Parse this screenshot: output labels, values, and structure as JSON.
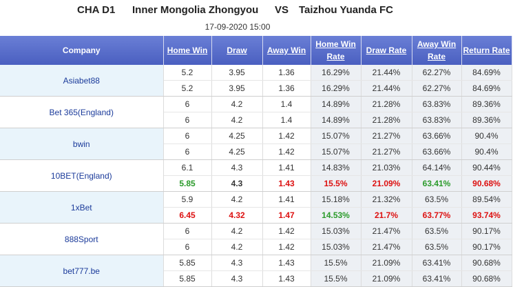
{
  "header": {
    "league": "CHA D1",
    "home": "Inner Mongolia Zhongyou",
    "vs": "VS",
    "away": "Taizhou Yuanda FC",
    "date": "17-09-2020 15:00"
  },
  "table": {
    "columns": [
      "Company",
      "Home Win",
      "Draw",
      "Away Win",
      "Home Win Rate",
      "Draw Rate",
      "Away Win Rate",
      "Return Rate"
    ],
    "companies": [
      {
        "name": "Asiabet88",
        "lines": [
          {
            "cells": [
              "5.2",
              "3.95",
              "1.36",
              "16.29%",
              "21.44%",
              "62.27%",
              "84.69%"
            ]
          },
          {
            "cells": [
              "5.2",
              "3.95",
              "1.36",
              "16.29%",
              "21.44%",
              "62.27%",
              "84.69%"
            ]
          }
        ]
      },
      {
        "name": "Bet 365(England)",
        "lines": [
          {
            "cells": [
              "6",
              "4.2",
              "1.4",
              "14.89%",
              "21.28%",
              "63.83%",
              "89.36%"
            ]
          },
          {
            "cells": [
              "6",
              "4.2",
              "1.4",
              "14.89%",
              "21.28%",
              "63.83%",
              "89.36%"
            ]
          }
        ]
      },
      {
        "name": "bwin",
        "lines": [
          {
            "cells": [
              "6",
              "4.25",
              "1.42",
              "15.07%",
              "21.27%",
              "63.66%",
              "90.4%"
            ]
          },
          {
            "cells": [
              "6",
              "4.25",
              "1.42",
              "15.07%",
              "21.27%",
              "63.66%",
              "90.4%"
            ]
          }
        ]
      },
      {
        "name": "10BET(England)",
        "lines": [
          {
            "cells": [
              "6.1",
              "4.3",
              "1.41",
              "14.83%",
              "21.03%",
              "64.14%",
              "90.44%"
            ]
          },
          {
            "cells": [
              "5.85",
              "4.3",
              "1.43",
              "15.5%",
              "21.09%",
              "63.41%",
              "90.68%"
            ],
            "colors": [
              "#2a9a2a",
              "#333333",
              "#dd1111",
              "#dd1111",
              "#dd1111",
              "#2a9a2a",
              "#dd1111"
            ]
          }
        ]
      },
      {
        "name": "1xBet",
        "lines": [
          {
            "cells": [
              "5.9",
              "4.2",
              "1.41",
              "15.18%",
              "21.32%",
              "63.5%",
              "89.54%"
            ]
          },
          {
            "cells": [
              "6.45",
              "4.32",
              "1.47",
              "14.53%",
              "21.7%",
              "63.77%",
              "93.74%"
            ],
            "colors": [
              "#dd1111",
              "#dd1111",
              "#dd1111",
              "#2a9a2a",
              "#dd1111",
              "#dd1111",
              "#dd1111"
            ]
          }
        ]
      },
      {
        "name": "888Sport",
        "lines": [
          {
            "cells": [
              "6",
              "4.2",
              "1.42",
              "15.03%",
              "21.47%",
              "63.5%",
              "90.17%"
            ]
          },
          {
            "cells": [
              "6",
              "4.2",
              "1.42",
              "15.03%",
              "21.47%",
              "63.5%",
              "90.17%"
            ]
          }
        ]
      },
      {
        "name": "bet777.be",
        "lines": [
          {
            "cells": [
              "5.85",
              "4.3",
              "1.43",
              "15.5%",
              "21.09%",
              "63.41%",
              "90.68%"
            ]
          },
          {
            "cells": [
              "5.85",
              "4.3",
              "1.43",
              "15.5%",
              "21.09%",
              "63.41%",
              "90.68%"
            ]
          }
        ]
      }
    ]
  }
}
